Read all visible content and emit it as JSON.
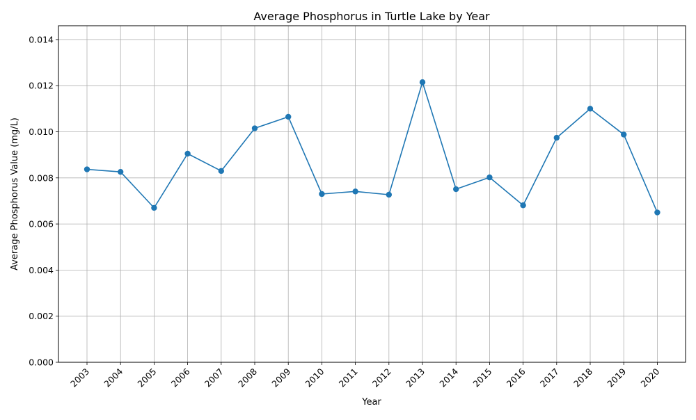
{
  "chart_data": {
    "type": "line",
    "title": "Average Phosphorus in Turtle Lake by Year",
    "xlabel": "Year",
    "ylabel": "Average Phosphorus Value (mg/L)",
    "categories": [
      "2003",
      "2004",
      "2005",
      "2006",
      "2007",
      "2008",
      "2009",
      "2010",
      "2011",
      "2012",
      "2013",
      "2014",
      "2015",
      "2016",
      "2017",
      "2018",
      "2019",
      "2020"
    ],
    "series": [
      {
        "values": [
          0.00837,
          0.00826,
          0.0067,
          0.00905,
          0.0083,
          0.01015,
          0.01065,
          0.0073,
          0.00741,
          0.00727,
          0.01215,
          0.00751,
          0.00802,
          0.00681,
          0.00974,
          0.011,
          0.00988,
          0.0065
        ],
        "color": "#1f77b4",
        "marker": "circle"
      }
    ],
    "ylim": [
      0,
      0.0146
    ],
    "yticks": [
      "0.000",
      "0.002",
      "0.004",
      "0.006",
      "0.008",
      "0.010",
      "0.012",
      "0.014"
    ],
    "ytick_values": [
      0,
      0.002,
      0.004,
      0.006,
      0.008,
      0.01,
      0.012,
      0.014
    ],
    "grid": true,
    "legend": "none",
    "x_tick_rotation": "45 degrees"
  }
}
